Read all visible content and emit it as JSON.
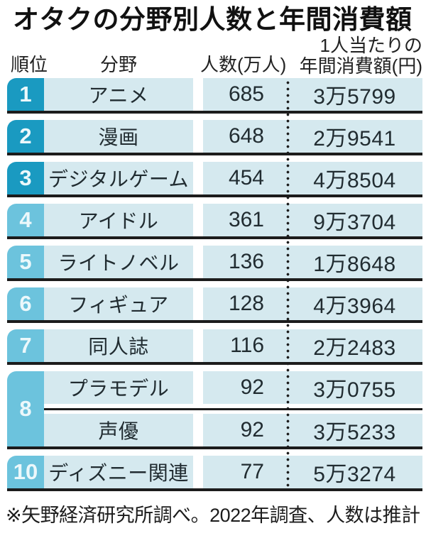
{
  "title": "オタクの分野別人数と年間消費額",
  "header": {
    "rank": "順位",
    "field": "分野",
    "count": "人数(万人)",
    "spend_line1": "1人当たりの",
    "spend_line2": "年間消費額(円)"
  },
  "rows": [
    {
      "rank": "1",
      "field": "アニメ",
      "count": "685",
      "spend": "3万5799"
    },
    {
      "rank": "2",
      "field": "漫画",
      "count": "648",
      "spend": "2万9541"
    },
    {
      "rank": "3",
      "field": "デジタルゲーム",
      "count": "454",
      "spend": "4万8504"
    },
    {
      "rank": "4",
      "field": "アイドル",
      "count": "361",
      "spend": "9万3704"
    },
    {
      "rank": "5",
      "field": "ライトノベル",
      "count": "136",
      "spend": "1万8648"
    },
    {
      "rank": "6",
      "field": "フィギュア",
      "count": "128",
      "spend": "4万3964"
    },
    {
      "rank": "7",
      "field": "同人誌",
      "count": "116",
      "spend": "2万2483"
    },
    {
      "rank": "8",
      "sub": [
        {
          "field": "プラモデル",
          "count": "92",
          "spend": "3万0755"
        },
        {
          "field": "声優",
          "count": "92",
          "spend": "3万5233"
        }
      ]
    },
    {
      "rank": "10",
      "field": "ディズニー関連",
      "count": "77",
      "spend": "5万3274"
    }
  ],
  "footnote": "※矢野経済研究所調べ。2022年調査、人数は推計",
  "colors": {
    "rank_top3_bg": "#1a9ac1",
    "rank_other_bg": "#6cc3dd",
    "row_bg": "#d5e9ef",
    "divider": "#1c1c1c",
    "rank_text": "#ecf8fb",
    "text": "#212c31"
  },
  "chart_data": {
    "type": "table",
    "title": "オタクの分野別人数と年間消費額",
    "columns": [
      "順位",
      "分野",
      "人数(万人)",
      "1人当たりの年間消費額(円)"
    ],
    "rows": [
      {
        "rank": 1,
        "field": "アニメ",
        "people_10k": 685,
        "yearly_spend_yen": 35799,
        "spend_display": "3万5799"
      },
      {
        "rank": 2,
        "field": "漫画",
        "people_10k": 648,
        "yearly_spend_yen": 29541,
        "spend_display": "2万9541"
      },
      {
        "rank": 3,
        "field": "デジタルゲーム",
        "people_10k": 454,
        "yearly_spend_yen": 48504,
        "spend_display": "4万8504"
      },
      {
        "rank": 4,
        "field": "アイドル",
        "people_10k": 361,
        "yearly_spend_yen": 93704,
        "spend_display": "9万3704"
      },
      {
        "rank": 5,
        "field": "ライトノベル",
        "people_10k": 136,
        "yearly_spend_yen": 18648,
        "spend_display": "1万8648"
      },
      {
        "rank": 6,
        "field": "フィギュア",
        "people_10k": 128,
        "yearly_spend_yen": 43964,
        "spend_display": "4万3964"
      },
      {
        "rank": 7,
        "field": "同人誌",
        "people_10k": 116,
        "yearly_spend_yen": 22483,
        "spend_display": "2万2483"
      },
      {
        "rank": 8,
        "field": "プラモデル",
        "people_10k": 92,
        "yearly_spend_yen": 30755,
        "spend_display": "3万0755"
      },
      {
        "rank": 8,
        "field": "声優",
        "people_10k": 92,
        "yearly_spend_yen": 35233,
        "spend_display": "3万5233"
      },
      {
        "rank": 10,
        "field": "ディズニー関連",
        "people_10k": 77,
        "yearly_spend_yen": 53274,
        "spend_display": "5万3274"
      }
    ],
    "source_note": "※矢野経済研究所調べ。2022年調査、人数は推計"
  }
}
